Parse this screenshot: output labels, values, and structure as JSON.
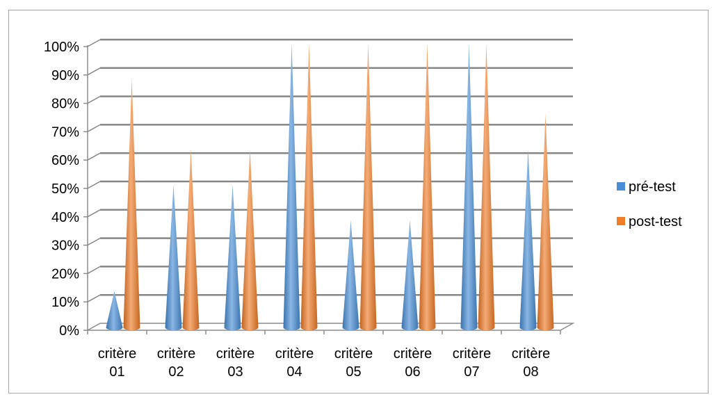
{
  "chart_data": {
    "type": "bar",
    "bar_shape": "cone-3d",
    "categories": [
      [
        "critère",
        "01"
      ],
      [
        "critère",
        "02"
      ],
      [
        "critère",
        "03"
      ],
      [
        "critère",
        "04"
      ],
      [
        "critère",
        "05"
      ],
      [
        "critère",
        "06"
      ],
      [
        "critère",
        "07"
      ],
      [
        "critère",
        "08"
      ]
    ],
    "series": [
      {
        "name": "pré-test",
        "color": "#4a8fd6",
        "values": [
          0.125,
          0.5,
          0.5,
          1.0,
          0.375,
          0.375,
          1.0,
          0.625
        ]
      },
      {
        "name": "post-test",
        "color": "#f07d2a",
        "values": [
          0.875,
          0.625,
          0.625,
          1.0,
          1.0,
          1.0,
          1.0,
          0.75
        ]
      }
    ],
    "ylim": [
      0,
      1
    ],
    "yticks": [
      0,
      0.1,
      0.2,
      0.3,
      0.4,
      0.5,
      0.6,
      0.7,
      0.8,
      0.9,
      1.0
    ],
    "ytick_labels": [
      "0%",
      "10%",
      "20%",
      "30%",
      "40%",
      "50%",
      "60%",
      "70%",
      "80%",
      "90%",
      "100%"
    ],
    "grid": true,
    "legend_position": "right"
  }
}
